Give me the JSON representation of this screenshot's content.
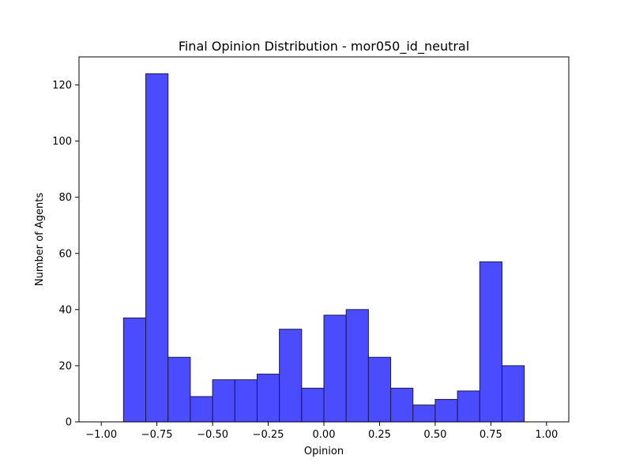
{
  "chart_data": {
    "type": "bar",
    "title": "Final Opinion Distribution - mor050_id_neutral",
    "xlabel": "Opinion",
    "ylabel": "Number of Agents",
    "xlim": [
      -1.1,
      1.1
    ],
    "ylim": [
      0,
      130
    ],
    "xticks": [
      -1.0,
      -0.75,
      -0.5,
      -0.25,
      0.0,
      0.25,
      0.5,
      0.75,
      1.0
    ],
    "xtick_labels": [
      "−1.00",
      "−0.75",
      "−0.50",
      "−0.25",
      "0.00",
      "0.25",
      "0.50",
      "0.75",
      "1.00"
    ],
    "yticks": [
      0,
      20,
      40,
      60,
      80,
      100,
      120
    ],
    "ytick_labels": [
      "0",
      "20",
      "40",
      "60",
      "80",
      "100",
      "120"
    ],
    "grid": false,
    "bar_color": "#4b4bff",
    "edge_color": "#1a1a4d",
    "bins": [
      {
        "x0": -0.9,
        "x1": -0.8,
        "value": 37
      },
      {
        "x0": -0.8,
        "x1": -0.7,
        "value": 124
      },
      {
        "x0": -0.7,
        "x1": -0.6,
        "value": 23
      },
      {
        "x0": -0.6,
        "x1": -0.5,
        "value": 9
      },
      {
        "x0": -0.5,
        "x1": -0.4,
        "value": 15
      },
      {
        "x0": -0.4,
        "x1": -0.3,
        "value": 15
      },
      {
        "x0": -0.3,
        "x1": -0.2,
        "value": 17
      },
      {
        "x0": -0.2,
        "x1": -0.1,
        "value": 33
      },
      {
        "x0": -0.1,
        "x1": 0.0,
        "value": 12
      },
      {
        "x0": 0.0,
        "x1": 0.1,
        "value": 38
      },
      {
        "x0": 0.1,
        "x1": 0.2,
        "value": 40
      },
      {
        "x0": 0.2,
        "x1": 0.3,
        "value": 23
      },
      {
        "x0": 0.3,
        "x1": 0.4,
        "value": 12
      },
      {
        "x0": 0.4,
        "x1": 0.5,
        "value": 6
      },
      {
        "x0": 0.5,
        "x1": 0.6,
        "value": 8
      },
      {
        "x0": 0.6,
        "x1": 0.7,
        "value": 11
      },
      {
        "x0": 0.7,
        "x1": 0.8,
        "value": 57
      },
      {
        "x0": 0.8,
        "x1": 0.9,
        "value": 20
      }
    ]
  }
}
